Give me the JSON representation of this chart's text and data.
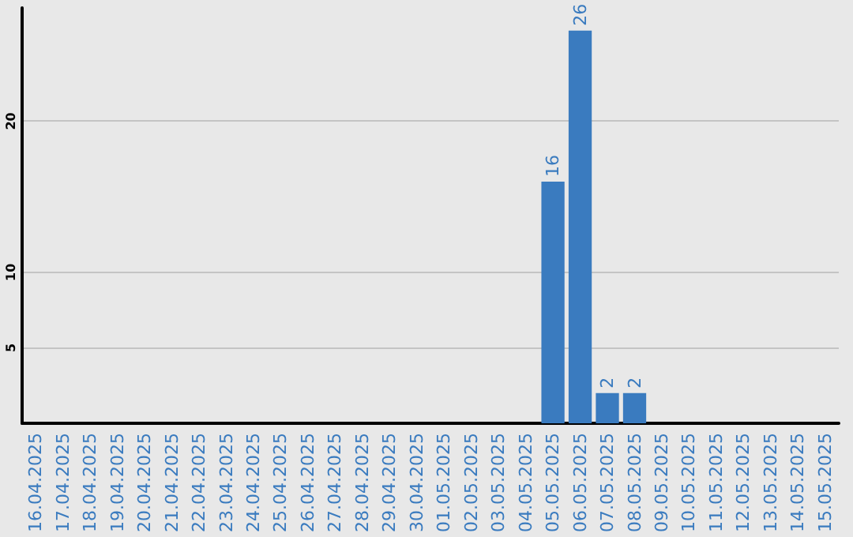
{
  "chart_data": {
    "type": "bar",
    "categories": [
      "16.04.2025",
      "17.04.2025",
      "18.04.2025",
      "19.04.2025",
      "20.04.2025",
      "21.04.2025",
      "22.04.2025",
      "23.04.2025",
      "24.04.2025",
      "25.04.2025",
      "26.04.2025",
      "27.04.2025",
      "28.04.2025",
      "29.04.2025",
      "30.04.2025",
      "01.05.2025",
      "02.05.2025",
      "03.05.2025",
      "04.05.2025",
      "05.05.2025",
      "06.05.2025",
      "07.05.2025",
      "08.05.2025",
      "09.05.2025",
      "10.05.2025",
      "11.05.2025",
      "12.05.2025",
      "13.05.2025",
      "14.05.2025",
      "15.05.2025"
    ],
    "values": [
      0,
      0,
      0,
      0,
      0,
      0,
      0,
      0,
      0,
      0,
      0,
      0,
      0,
      0,
      0,
      0,
      0,
      0,
      0,
      16,
      26,
      2,
      2,
      0,
      0,
      0,
      0,
      0,
      0,
      0
    ],
    "value_labels": [
      null,
      null,
      null,
      null,
      null,
      null,
      null,
      null,
      null,
      null,
      null,
      null,
      null,
      null,
      null,
      null,
      null,
      null,
      null,
      "16",
      "26",
      "2",
      "2",
      null,
      null,
      null,
      null,
      null,
      null,
      null
    ],
    "color": "#3a7bbf",
    "ylim": [
      0,
      27.5
    ],
    "yticks": [
      5,
      10,
      20
    ],
    "grid": "y"
  }
}
